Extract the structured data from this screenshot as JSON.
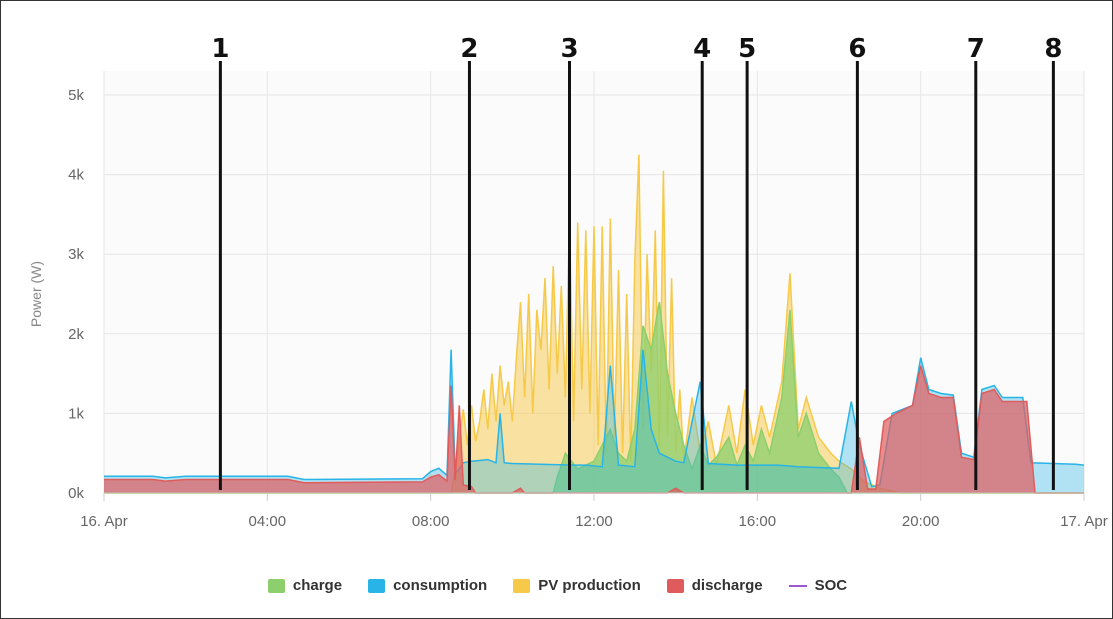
{
  "chart_data": {
    "type": "area",
    "title": "",
    "xlabel": "",
    "ylabel": "Power (W)",
    "x_range_hours": [
      0,
      24
    ],
    "ylim": [
      0,
      5000
    ],
    "yticks": [
      {
        "value": 0,
        "label": "0k"
      },
      {
        "value": 1000,
        "label": "1k"
      },
      {
        "value": 2000,
        "label": "2k"
      },
      {
        "value": 3000,
        "label": "3k"
      },
      {
        "value": 4000,
        "label": "4k"
      },
      {
        "value": 5000,
        "label": "5k"
      }
    ],
    "xticks": [
      {
        "value": 0,
        "label": "16. Apr"
      },
      {
        "value": 4,
        "label": "04:00"
      },
      {
        "value": 8,
        "label": "08:00"
      },
      {
        "value": 12,
        "label": "12:00"
      },
      {
        "value": 16,
        "label": "16:00"
      },
      {
        "value": 20,
        "label": "20:00"
      },
      {
        "value": 24,
        "label": "17. Apr"
      }
    ],
    "grid": true,
    "legend_position": "bottom-center",
    "series": [
      {
        "name": "PV production",
        "color": "#f7c948",
        "fill_opacity": 0.5,
        "points": [
          [
            0,
            0
          ],
          [
            8.5,
            0
          ],
          [
            8.6,
            300
          ],
          [
            8.8,
            1050
          ],
          [
            8.9,
            600
          ],
          [
            9.0,
            1100
          ],
          [
            9.1,
            650
          ],
          [
            9.2,
            900
          ],
          [
            9.3,
            1300
          ],
          [
            9.4,
            800
          ],
          [
            9.5,
            1500
          ],
          [
            9.6,
            900
          ],
          [
            9.7,
            1600
          ],
          [
            9.8,
            1100
          ],
          [
            9.9,
            1400
          ],
          [
            10.0,
            900
          ],
          [
            10.1,
            1700
          ],
          [
            10.2,
            2400
          ],
          [
            10.3,
            1200
          ],
          [
            10.4,
            2500
          ],
          [
            10.5,
            1000
          ],
          [
            10.6,
            2300
          ],
          [
            10.7,
            1800
          ],
          [
            10.8,
            2700
          ],
          [
            10.9,
            1300
          ],
          [
            11.0,
            2850
          ],
          [
            11.1,
            1500
          ],
          [
            11.2,
            2600
          ],
          [
            11.3,
            1200
          ],
          [
            11.4,
            3450
          ],
          [
            11.5,
            900
          ],
          [
            11.6,
            3400
          ],
          [
            11.7,
            1300
          ],
          [
            11.8,
            3300
          ],
          [
            11.9,
            1000
          ],
          [
            12.0,
            3350
          ],
          [
            12.1,
            600
          ],
          [
            12.2,
            3350
          ],
          [
            12.3,
            500
          ],
          [
            12.4,
            3450
          ],
          [
            12.5,
            700
          ],
          [
            12.6,
            2800
          ],
          [
            12.7,
            500
          ],
          [
            12.8,
            2500
          ],
          [
            12.9,
            400
          ],
          [
            13.0,
            2900
          ],
          [
            13.1,
            4250
          ],
          [
            13.2,
            800
          ],
          [
            13.3,
            3000
          ],
          [
            13.4,
            1500
          ],
          [
            13.5,
            3300
          ],
          [
            13.6,
            500
          ],
          [
            13.7,
            4050
          ],
          [
            13.8,
            700
          ],
          [
            13.9,
            2700
          ],
          [
            14.0,
            500
          ],
          [
            14.1,
            1300
          ],
          [
            14.2,
            400
          ],
          [
            14.4,
            1200
          ],
          [
            14.6,
            500
          ],
          [
            14.8,
            900
          ],
          [
            15.0,
            350
          ],
          [
            15.3,
            1100
          ],
          [
            15.5,
            500
          ],
          [
            15.7,
            1300
          ],
          [
            15.9,
            600
          ],
          [
            16.1,
            1100
          ],
          [
            16.3,
            700
          ],
          [
            16.6,
            1400
          ],
          [
            16.8,
            2760
          ],
          [
            17.0,
            800
          ],
          [
            17.2,
            1200
          ],
          [
            17.5,
            700
          ],
          [
            17.8,
            500
          ],
          [
            18.0,
            400
          ],
          [
            18.3,
            300
          ],
          [
            18.6,
            150
          ],
          [
            19.0,
            60
          ],
          [
            19.5,
            0
          ],
          [
            24,
            0
          ]
        ]
      },
      {
        "name": "charge",
        "color": "#8ccf6c",
        "fill_opacity": 0.75,
        "points": [
          [
            0,
            0
          ],
          [
            11.0,
            0
          ],
          [
            11.1,
            200
          ],
          [
            11.3,
            500
          ],
          [
            11.6,
            300
          ],
          [
            12.0,
            400
          ],
          [
            12.4,
            800
          ],
          [
            12.6,
            500
          ],
          [
            12.8,
            400
          ],
          [
            13.0,
            800
          ],
          [
            13.2,
            2100
          ],
          [
            13.4,
            1800
          ],
          [
            13.6,
            2400
          ],
          [
            13.8,
            1500
          ],
          [
            14.0,
            1000
          ],
          [
            14.2,
            600
          ],
          [
            14.4,
            300
          ],
          [
            14.6,
            600
          ],
          [
            14.8,
            350
          ],
          [
            15.0,
            450
          ],
          [
            15.3,
            700
          ],
          [
            15.5,
            350
          ],
          [
            15.7,
            600
          ],
          [
            15.9,
            400
          ],
          [
            16.1,
            800
          ],
          [
            16.3,
            500
          ],
          [
            16.6,
            1200
          ],
          [
            16.8,
            2300
          ],
          [
            17.0,
            700
          ],
          [
            17.2,
            1000
          ],
          [
            17.5,
            500
          ],
          [
            17.8,
            300
          ],
          [
            18.0,
            200
          ],
          [
            18.2,
            0
          ],
          [
            24,
            0
          ]
        ]
      },
      {
        "name": "consumption",
        "color": "#28b4e6",
        "fill_opacity": 0.35,
        "points": [
          [
            0,
            210
          ],
          [
            1.2,
            210
          ],
          [
            1.5,
            190
          ],
          [
            2.0,
            210
          ],
          [
            4.5,
            210
          ],
          [
            4.9,
            170
          ],
          [
            7.8,
            180
          ],
          [
            8.0,
            270
          ],
          [
            8.2,
            310
          ],
          [
            8.4,
            220
          ],
          [
            8.5,
            1800
          ],
          [
            8.6,
            250
          ],
          [
            8.7,
            300
          ],
          [
            8.8,
            380
          ],
          [
            9.0,
            400
          ],
          [
            9.4,
            420
          ],
          [
            9.6,
            380
          ],
          [
            9.7,
            1000
          ],
          [
            9.8,
            380
          ],
          [
            10.0,
            370
          ],
          [
            11.5,
            350
          ],
          [
            11.8,
            350
          ],
          [
            12.2,
            330
          ],
          [
            12.4,
            1600
          ],
          [
            12.6,
            350
          ],
          [
            13.0,
            330
          ],
          [
            13.2,
            1800
          ],
          [
            13.4,
            800
          ],
          [
            13.6,
            500
          ],
          [
            14.0,
            400
          ],
          [
            14.2,
            380
          ],
          [
            14.6,
            1400
          ],
          [
            14.8,
            370
          ],
          [
            15.5,
            350
          ],
          [
            16.5,
            350
          ],
          [
            17.0,
            330
          ],
          [
            18.0,
            310
          ],
          [
            18.3,
            1150
          ],
          [
            18.5,
            600
          ],
          [
            18.8,
            80
          ],
          [
            19.0,
            100
          ],
          [
            19.3,
            1000
          ],
          [
            19.8,
            1100
          ],
          [
            20.0,
            1700
          ],
          [
            20.2,
            1300
          ],
          [
            20.5,
            1250
          ],
          [
            20.8,
            1230
          ],
          [
            21.0,
            500
          ],
          [
            21.3,
            450
          ],
          [
            21.5,
            1300
          ],
          [
            21.8,
            1350
          ],
          [
            22.0,
            1200
          ],
          [
            22.5,
            1200
          ],
          [
            22.7,
            380
          ],
          [
            23.8,
            360
          ],
          [
            24,
            350
          ]
        ]
      },
      {
        "name": "discharge",
        "color": "#e05c5c",
        "fill_opacity": 0.7,
        "points": [
          [
            0,
            170
          ],
          [
            1.2,
            170
          ],
          [
            1.5,
            150
          ],
          [
            2.0,
            170
          ],
          [
            4.5,
            170
          ],
          [
            4.9,
            130
          ],
          [
            7.8,
            140
          ],
          [
            8.0,
            200
          ],
          [
            8.2,
            230
          ],
          [
            8.4,
            150
          ],
          [
            8.5,
            1350
          ],
          [
            8.6,
            160
          ],
          [
            8.7,
            1100
          ],
          [
            8.8,
            100
          ],
          [
            9.0,
            80
          ],
          [
            9.1,
            0
          ],
          [
            10.0,
            0
          ],
          [
            10.2,
            60
          ],
          [
            10.3,
            0
          ],
          [
            13.8,
            0
          ],
          [
            14.0,
            60
          ],
          [
            14.2,
            0
          ],
          [
            18.3,
            0
          ],
          [
            18.5,
            700
          ],
          [
            18.7,
            50
          ],
          [
            18.9,
            50
          ],
          [
            19.1,
            900
          ],
          [
            19.4,
            1000
          ],
          [
            19.6,
            1050
          ],
          [
            19.8,
            1100
          ],
          [
            20.0,
            1600
          ],
          [
            20.2,
            1250
          ],
          [
            20.5,
            1200
          ],
          [
            20.8,
            1200
          ],
          [
            21.0,
            450
          ],
          [
            21.3,
            420
          ],
          [
            21.5,
            1250
          ],
          [
            21.8,
            1300
          ],
          [
            22.0,
            1150
          ],
          [
            22.6,
            1150
          ],
          [
            22.8,
            0
          ],
          [
            24,
            0
          ]
        ]
      },
      {
        "name": "SOC",
        "color": "#9b59d0",
        "fill_opacity": 0,
        "points": []
      }
    ],
    "annotations": [
      {
        "label": "1",
        "x": 2.85
      },
      {
        "label": "2",
        "x": 8.95
      },
      {
        "label": "3",
        "x": 11.4
      },
      {
        "label": "4",
        "x": 14.65
      },
      {
        "label": "5",
        "x": 15.75
      },
      {
        "label": "6",
        "x": 18.45
      },
      {
        "label": "7",
        "x": 21.35
      },
      {
        "label": "8",
        "x": 23.25
      }
    ]
  },
  "legend": {
    "items": [
      {
        "label": "charge",
        "color": "#8ccf6c",
        "kind": "swatch"
      },
      {
        "label": "consumption",
        "color": "#28b4e6",
        "kind": "swatch"
      },
      {
        "label": "PV production",
        "color": "#f7c948",
        "kind": "swatch"
      },
      {
        "label": "discharge",
        "color": "#e05c5c",
        "kind": "swatch"
      },
      {
        "label": "SOC",
        "color": "#9b59d0",
        "kind": "line"
      }
    ]
  }
}
